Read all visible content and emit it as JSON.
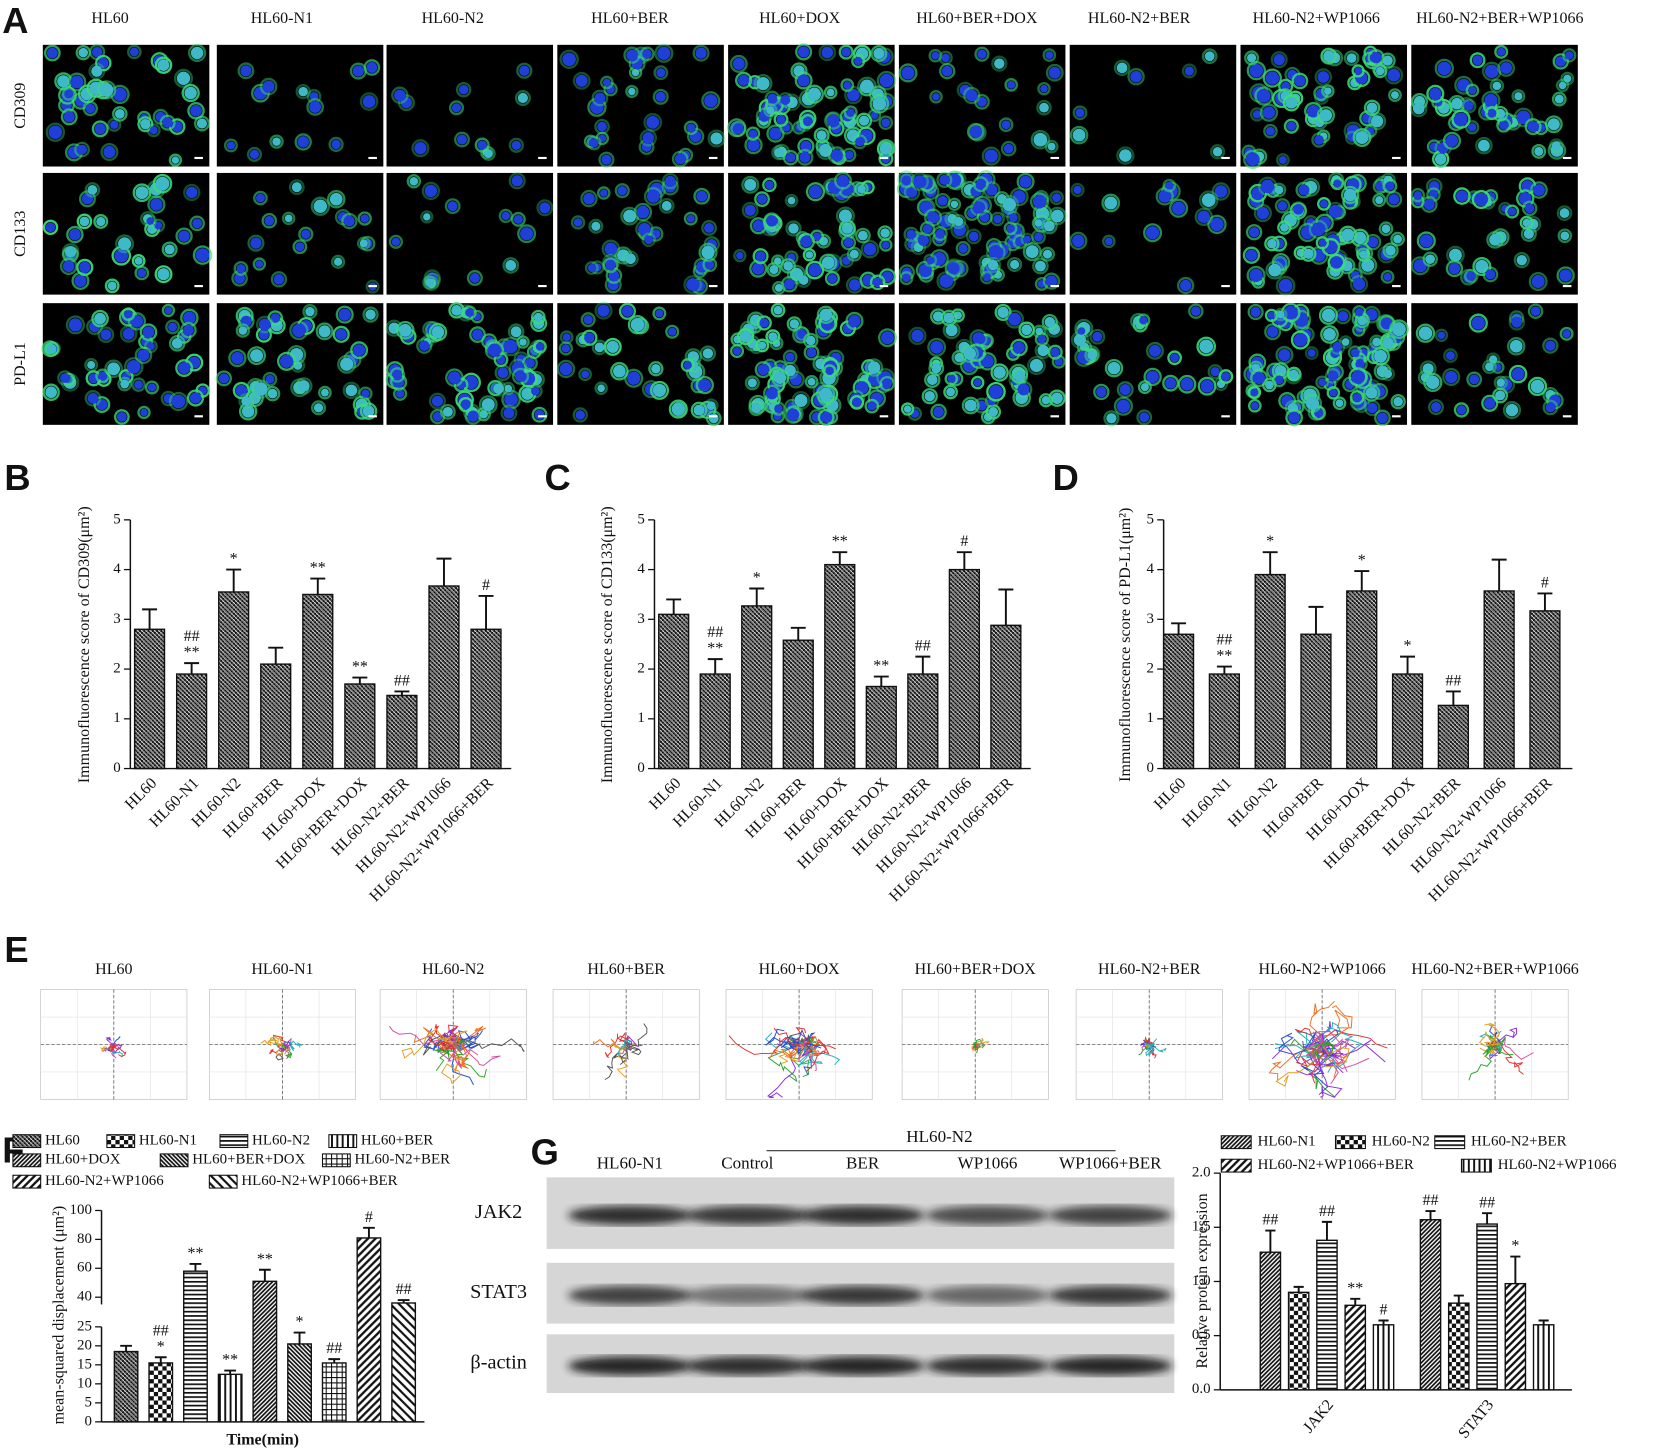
{
  "panel_a": {
    "label": "A",
    "columns": [
      "HL60",
      "HL60-N1",
      "HL60-N2",
      "HL60+BER",
      "HL60+DOX",
      "HL60+BER+DOX",
      "HL60-N2+BER",
      "HL60-N2+WP1066",
      "HL60-N2+BER+WP1066"
    ],
    "rows": [
      "CD309",
      "CD133",
      "PD-L1"
    ]
  },
  "panel_e": {
    "label": "E",
    "columns": [
      "HL60",
      "HL60-N1",
      "HL60-N2",
      "HL60+BER",
      "HL60+DOX",
      "HL60+BER+DOX",
      "HL60-N2+BER",
      "HL60-N2+WP1066",
      "HL60-N2+BER+WP1066"
    ]
  },
  "blot": {
    "label": "G",
    "group": "HL60-N2",
    "lanes": [
      "HL60-N1",
      "Control",
      "BER",
      "WP1066",
      "WP1066+BER"
    ],
    "rows": [
      "JAK2",
      "STAT3",
      "β-actin"
    ]
  },
  "chart_data": [
    {
      "type": "bar",
      "panel": "B",
      "ylabel": "Immunofluorescence score of CD309(μm²)",
      "categories": [
        "HL60",
        "HL60-N1",
        "HL60-N2",
        "HL60+BER",
        "HL60+DOX",
        "HL60+BER+DOX",
        "HL60-N2+BER",
        "HL60-N2+WP1066",
        "HL60-N2+WP1066+BER"
      ],
      "values": [
        2.8,
        1.9,
        3.55,
        2.1,
        3.5,
        1.7,
        1.47,
        3.67,
        2.8
      ],
      "errors": [
        0.4,
        0.22,
        0.45,
        0.33,
        0.32,
        0.13,
        0.08,
        0.55,
        0.67
      ],
      "annotations": [
        null,
        [
          "##",
          "**"
        ],
        [
          "*"
        ],
        null,
        [
          "**"
        ],
        [
          "**"
        ],
        [
          "##"
        ],
        null,
        [
          "#"
        ]
      ],
      "pattern": "crosshatch",
      "ylim": [
        0,
        5
      ],
      "yticks": [
        0,
        1,
        2,
        3,
        4,
        5
      ]
    },
    {
      "type": "bar",
      "panel": "C",
      "ylabel": "Immunofluorescence score of CD133(μm²)",
      "categories": [
        "HL60",
        "HL60-N1",
        "HL60-N2",
        "HL60+BER",
        "HL60+DOX",
        "HL60+BER+DOX",
        "HL60-N2+BER",
        "HL60-N2+WP1066",
        "HL60-N2+WP1066+BER"
      ],
      "values": [
        3.1,
        1.9,
        3.27,
        2.58,
        4.1,
        1.65,
        1.9,
        4.0,
        2.88
      ],
      "errors": [
        0.3,
        0.3,
        0.35,
        0.25,
        0.25,
        0.2,
        0.35,
        0.35,
        0.72
      ],
      "annotations": [
        null,
        [
          "##",
          "**"
        ],
        [
          "*"
        ],
        null,
        [
          "**"
        ],
        [
          "**"
        ],
        [
          "##"
        ],
        [
          "#"
        ],
        null
      ],
      "pattern": "crosshatch",
      "ylim": [
        0,
        5
      ],
      "yticks": [
        0,
        1,
        2,
        3,
        4,
        5
      ]
    },
    {
      "type": "bar",
      "panel": "D",
      "ylabel": "Immunofluorescence score of PD-L1(μm²)",
      "categories": [
        "HL60",
        "HL60-N1",
        "HL60-N2",
        "HL60+BER",
        "HL60+DOX",
        "HL60+BER+DOX",
        "HL60-N2+BER",
        "HL60-N2+WP1066",
        "HL60-N2+WP1066+BER"
      ],
      "values": [
        2.7,
        1.9,
        3.9,
        2.7,
        3.57,
        1.9,
        1.27,
        3.57,
        3.17
      ],
      "errors": [
        0.22,
        0.15,
        0.45,
        0.55,
        0.4,
        0.35,
        0.28,
        0.63,
        0.35
      ],
      "annotations": [
        null,
        [
          "##",
          "**"
        ],
        [
          "*"
        ],
        null,
        [
          "*"
        ],
        [
          "*"
        ],
        [
          "##"
        ],
        null,
        [
          "#"
        ]
      ],
      "pattern": "crosshatch",
      "ylim": [
        0,
        5
      ],
      "yticks": [
        0,
        1,
        2,
        3,
        4,
        5
      ]
    },
    {
      "type": "bar",
      "panel": "F",
      "ylabel": "mean-squared displacement (μm²)",
      "xlabel": "Time(min)",
      "categories": [
        "HL60",
        "HL60-N1",
        "HL60-N2",
        "HL60+BER",
        "HL60+DOX",
        "HL60+BER+DOX",
        "HL60-N2+BER",
        "HL60-N2+WP1066",
        "HL60-N2+WP1066+BER"
      ],
      "values": [
        18.5,
        15.5,
        58,
        12.5,
        51,
        20.5,
        15.5,
        81,
        36
      ],
      "errors": [
        1.5,
        1.5,
        5,
        1,
        8,
        3,
        1,
        7,
        2
      ],
      "annotations": [
        null,
        [
          "##",
          "*"
        ],
        [
          "**"
        ],
        [
          "**"
        ],
        [
          "**"
        ],
        [
          "*"
        ],
        [
          "##"
        ],
        [
          "#"
        ],
        [
          "##"
        ]
      ],
      "patterns": [
        "crosshatch",
        "checker",
        "hlines",
        "vlines",
        "diag",
        "backdiag",
        "grid",
        "diag-wide",
        "backdiag-wide"
      ],
      "legend": true,
      "ylim": [
        0,
        100
      ],
      "axis_break": [
        25,
        35
      ],
      "yticks": [
        0,
        5,
        10,
        15,
        20,
        25,
        40,
        60,
        80,
        100
      ]
    },
    {
      "type": "bar",
      "panel": "G",
      "ylabel": "Relative protein expression",
      "categories": [
        "JAK2",
        "STAT3"
      ],
      "series": [
        {
          "name": "HL60-N1",
          "pattern": "diag",
          "values": [
            1.27,
            1.57
          ],
          "errors": [
            0.2,
            0.08
          ],
          "annotations": [
            [
              "##"
            ],
            [
              "##"
            ]
          ]
        },
        {
          "name": "HL60-N2",
          "pattern": "checker",
          "values": [
            0.9,
            0.8
          ],
          "errors": [
            0.05,
            0.07
          ],
          "annotations": [
            null,
            null
          ]
        },
        {
          "name": "HL60-N2+BER",
          "pattern": "hlines",
          "values": [
            1.38,
            1.53
          ],
          "errors": [
            0.17,
            0.1
          ],
          "annotations": [
            [
              "##"
            ],
            [
              "##"
            ]
          ]
        },
        {
          "name": "HL60-N2+WP1066+BER",
          "pattern": "diag-wide",
          "values": [
            0.78,
            0.98
          ],
          "errors": [
            0.06,
            0.25
          ],
          "annotations": [
            [
              "**"
            ],
            [
              "*"
            ]
          ]
        },
        {
          "name": "HL60-N2+WP1066",
          "pattern": "vlines",
          "values": [
            0.6,
            0.6
          ],
          "errors": [
            0.04,
            0.04
          ],
          "annotations": [
            [
              "#"
            ],
            null
          ]
        }
      ],
      "legend": true,
      "ylim": [
        0,
        2
      ],
      "yticks": [
        {
          "value": 0,
          "label": "0.0"
        },
        0.5,
        {
          "value": 1,
          "label": "1.0"
        },
        1.5,
        {
          "value": 2,
          "label": "2.0"
        }
      ]
    }
  ]
}
